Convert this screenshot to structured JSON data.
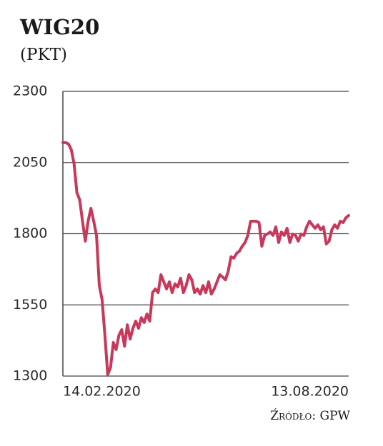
{
  "chart_data": {
    "type": "line",
    "title": "WIG20",
    "subtitle": "(PKT)",
    "source": "Źródło: GPW",
    "categories": [
      "14.02.2020",
      null,
      null,
      null,
      null,
      null,
      null,
      null,
      null,
      null,
      null,
      null,
      null,
      null,
      null,
      null,
      null,
      null,
      null,
      null,
      null,
      null,
      null,
      null,
      null,
      null,
      null,
      null,
      null,
      null,
      null,
      null,
      null,
      null,
      null,
      null,
      null,
      null,
      null,
      null,
      null,
      null,
      null,
      null,
      null,
      null,
      null,
      null,
      null,
      null,
      null,
      null,
      null,
      null,
      null,
      null,
      null,
      null,
      null,
      null,
      null,
      null,
      null,
      null,
      null,
      null,
      null,
      null,
      null,
      null,
      null,
      null,
      null,
      null,
      null,
      null,
      null,
      null,
      null,
      null,
      null,
      null,
      null,
      null,
      null,
      null,
      null,
      null,
      null,
      null,
      null,
      null,
      null,
      null,
      null,
      null,
      null,
      null,
      null,
      null,
      null,
      null,
      "13.08.2020"
    ],
    "values": [
      2120,
      2120,
      2115,
      2095,
      2045,
      1944,
      1919,
      1844,
      1774,
      1844,
      1889,
      1844,
      1794,
      1618,
      1568,
      1443,
      1305,
      1330,
      1418,
      1393,
      1443,
      1463,
      1405,
      1480,
      1430,
      1468,
      1493,
      1468,
      1505,
      1488,
      1518,
      1493,
      1593,
      1606,
      1593,
      1656,
      1631,
      1606,
      1631,
      1593,
      1624,
      1613,
      1644,
      1593,
      1618,
      1656,
      1638,
      1593,
      1606,
      1588,
      1618,
      1593,
      1631,
      1588,
      1606,
      1631,
      1656,
      1648,
      1638,
      1668,
      1719,
      1714,
      1731,
      1739,
      1756,
      1769,
      1794,
      1844,
      1844,
      1844,
      1839,
      1756,
      1794,
      1799,
      1806,
      1794,
      1824,
      1769,
      1806,
      1794,
      1819,
      1769,
      1799,
      1794,
      1774,
      1799,
      1794,
      1824,
      1844,
      1831,
      1819,
      1831,
      1814,
      1824,
      1764,
      1774,
      1814,
      1831,
      1819,
      1844,
      1839,
      1856,
      1864
    ],
    "color": "#c8385a",
    "ylim": [
      1300,
      2300
    ],
    "yticks": [
      1300,
      1550,
      1800,
      2050,
      2300
    ],
    "grid": true
  }
}
